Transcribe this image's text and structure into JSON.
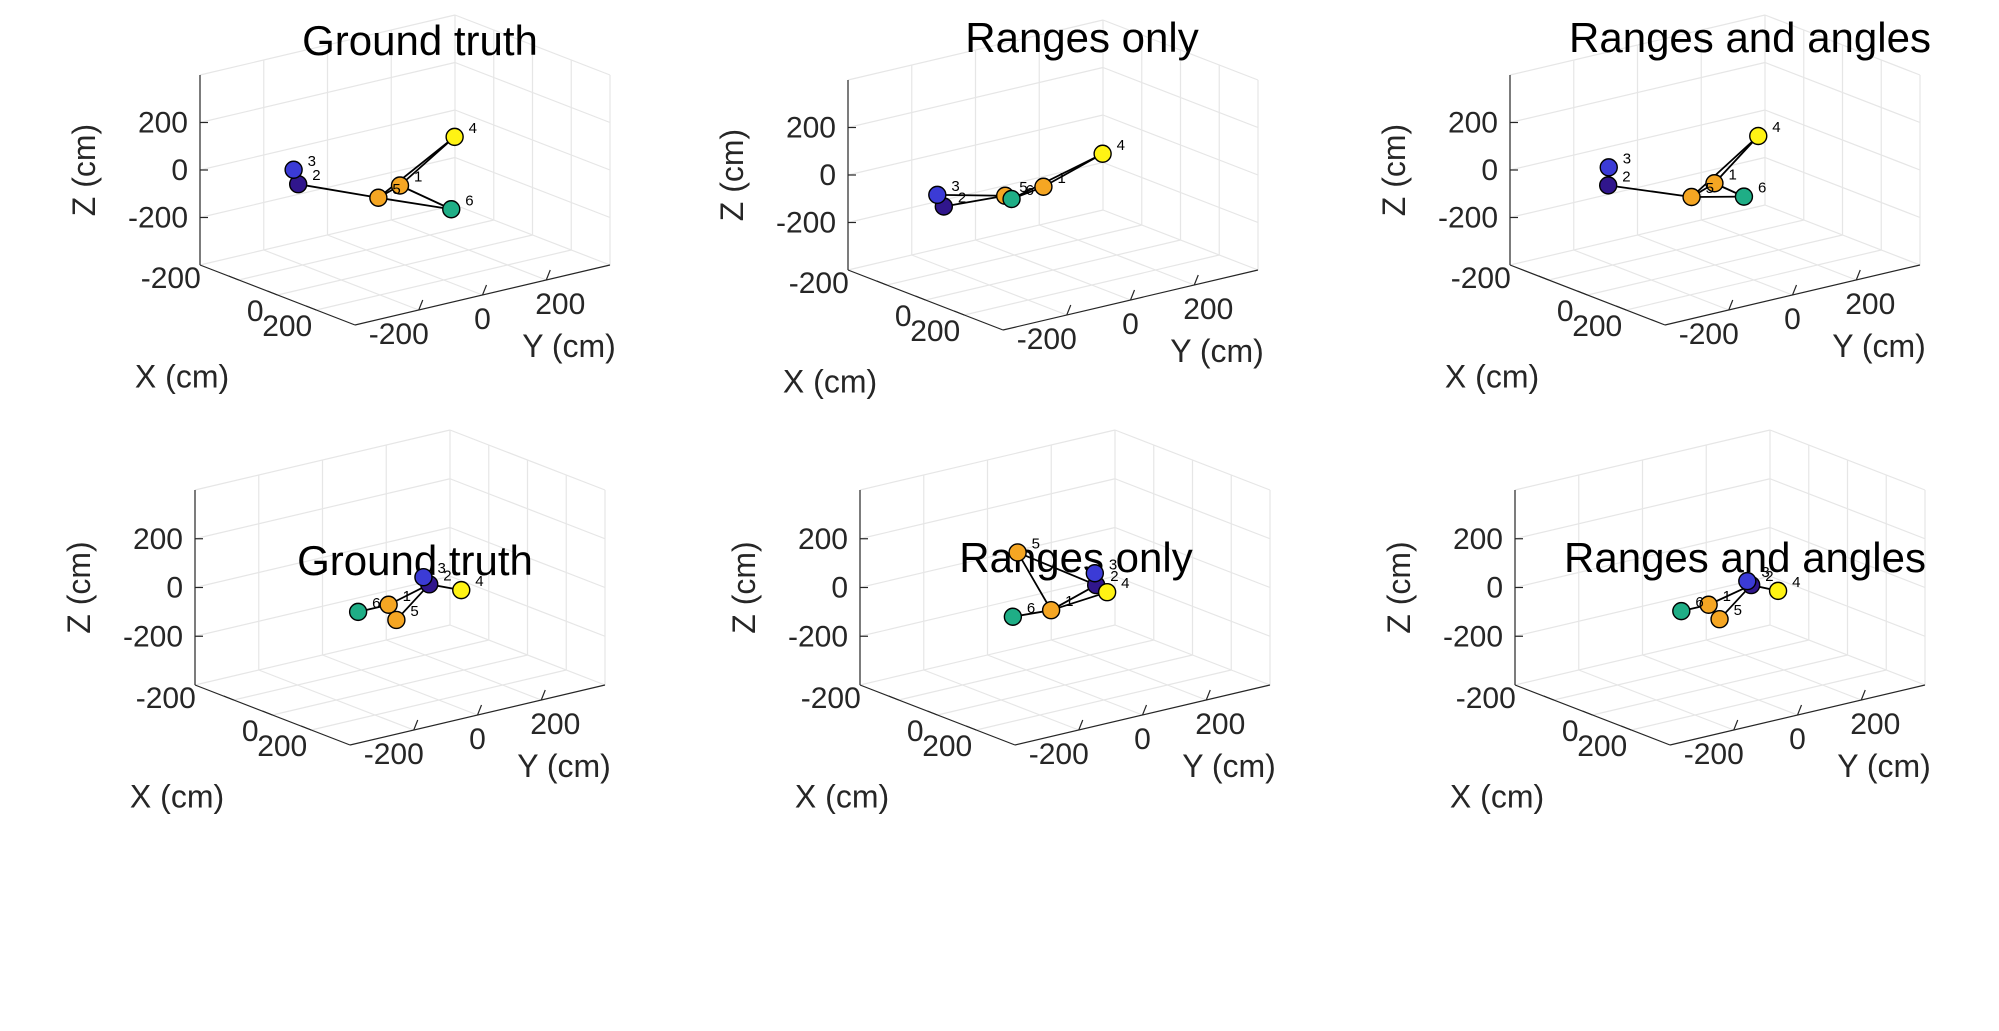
{
  "chart_data": [
    {
      "type": "scatter3d",
      "title": "Ground truth",
      "xlabel": "X (cm)",
      "ylabel": "Y (cm)",
      "zlabel": "Z (cm)",
      "xticks": [
        "-200",
        "0",
        "200"
      ],
      "yticks": [
        "-200",
        "0",
        "200"
      ],
      "zticks": [
        "200",
        "0",
        "-200"
      ],
      "grid": true,
      "nodes": [
        {
          "id": "1",
          "x": 40,
          "y": -40,
          "z": -40,
          "color": "#f5a623"
        },
        {
          "id": "2",
          "x": -140,
          "y": -250,
          "z": -25,
          "color": "#30168c"
        },
        {
          "id": "3",
          "x": -180,
          "y": -240,
          "z": 20,
          "color": "#3b3bd6"
        },
        {
          "id": "4",
          "x": -40,
          "y": 180,
          "z": 70,
          "color": "#fff314"
        },
        {
          "id": "5",
          "x": 60,
          "y": -120,
          "z": -60,
          "color": "#f5a623"
        },
        {
          "id": "6",
          "x": 140,
          "y": 60,
          "z": -140,
          "color": "#1fae86"
        }
      ],
      "edges": [
        [
          "3",
          "2"
        ],
        [
          "2",
          "5"
        ],
        [
          "5",
          "1"
        ],
        [
          "1",
          "4"
        ],
        [
          "5",
          "4"
        ],
        [
          "1",
          "6"
        ],
        [
          "5",
          "6"
        ]
      ]
    },
    {
      "type": "scatter3d",
      "title": "Ranges only",
      "xlabel": "X (cm)",
      "ylabel": "Y (cm)",
      "zlabel": "Z (cm)",
      "xticks": [
        "-200",
        "0",
        "200"
      ],
      "yticks": [
        "-200",
        "0",
        "200"
      ],
      "zticks": [
        "200",
        "0",
        "-200"
      ],
      "grid": true,
      "nodes": [
        {
          "id": "1",
          "x": 0,
          "y": -30,
          "z": -40,
          "color": "#f5a623"
        },
        {
          "id": "2",
          "x": -70,
          "y": -300,
          "z": -60,
          "color": "#30168c"
        },
        {
          "id": "3",
          "x": -120,
          "y": -290,
          "z": -30,
          "color": "#3b3bd6"
        },
        {
          "id": "4",
          "x": -40,
          "y": 180,
          "z": 20,
          "color": "#fff314"
        },
        {
          "id": "5",
          "x": 0,
          "y": -150,
          "z": -40,
          "color": "#f5a623"
        },
        {
          "id": "6",
          "x": 0,
          "y": -130,
          "z": -60,
          "color": "#1fae86"
        }
      ],
      "edges": [
        [
          "3",
          "2"
        ],
        [
          "2",
          "5"
        ],
        [
          "5",
          "6"
        ],
        [
          "6",
          "1"
        ],
        [
          "1",
          "4"
        ],
        [
          "3",
          "5"
        ],
        [
          "6",
          "4"
        ]
      ]
    },
    {
      "type": "scatter3d",
      "title": "Ranges and angles",
      "xlabel": "X (cm)",
      "ylabel": "Y (cm)",
      "zlabel": "Z (cm)",
      "xticks": [
        "-200",
        "0",
        "200"
      ],
      "yticks": [
        "-200",
        "0",
        "200"
      ],
      "zticks": [
        "200",
        "0",
        "-200"
      ],
      "grid": true,
      "nodes": [
        {
          "id": "1",
          "x": 30,
          "y": -20,
          "z": -40,
          "color": "#f5a623"
        },
        {
          "id": "2",
          "x": -140,
          "y": -250,
          "z": -30,
          "color": "#30168c"
        },
        {
          "id": "3",
          "x": -170,
          "y": -230,
          "z": 30,
          "color": "#3b3bd6"
        },
        {
          "id": "4",
          "x": -40,
          "y": 160,
          "z": 80,
          "color": "#fff314"
        },
        {
          "id": "5",
          "x": 60,
          "y": -110,
          "z": -60,
          "color": "#f5a623"
        },
        {
          "id": "6",
          "x": 100,
          "y": 30,
          "z": -90,
          "color": "#1fae86"
        }
      ],
      "edges": [
        [
          "3",
          "2"
        ],
        [
          "2",
          "5"
        ],
        [
          "5",
          "1"
        ],
        [
          "1",
          "4"
        ],
        [
          "5",
          "4"
        ],
        [
          "1",
          "6"
        ],
        [
          "5",
          "6"
        ]
      ]
    },
    {
      "type": "scatter3d",
      "title": "Ground truth",
      "xlabel": "X (cm)",
      "ylabel": "Y (cm)",
      "zlabel": "Z (cm)",
      "xticks": [
        "-200",
        "0",
        "200"
      ],
      "yticks": [
        "-200",
        "0",
        "200"
      ],
      "zticks": [
        "200",
        "0",
        "-200"
      ],
      "grid": true,
      "nodes": [
        {
          "id": "1",
          "x": 40,
          "y": -60,
          "z": -40,
          "color": "#f5a623"
        },
        {
          "id": "2",
          "x": -30,
          "y": 110,
          "z": -30,
          "color": "#30168c"
        },
        {
          "id": "3",
          "x": -60,
          "y": 110,
          "z": -10,
          "color": "#3b3bd6"
        },
        {
          "id": "4",
          "x": 20,
          "y": 180,
          "z": -60,
          "color": "#fff314"
        },
        {
          "id": "5",
          "x": 80,
          "y": -60,
          "z": -90,
          "color": "#f5a623"
        },
        {
          "id": "6",
          "x": 80,
          "y": -180,
          "z": -20,
          "color": "#1fae86"
        }
      ],
      "edges": [
        [
          "6",
          "1"
        ],
        [
          "1",
          "2"
        ],
        [
          "1",
          "5"
        ],
        [
          "5",
          "2"
        ],
        [
          "2",
          "3"
        ],
        [
          "2",
          "4"
        ]
      ]
    },
    {
      "type": "scatter3d",
      "title": "Ranges only",
      "xlabel": "X (cm)",
      "ylabel": "Y (cm)",
      "zlabel": "Z (cm)",
      "xticks": [
        "-200",
        "0",
        "200"
      ],
      "yticks": [
        "-200",
        "0",
        "200"
      ],
      "zticks": [
        "200",
        "0",
        "-200"
      ],
      "grid": true,
      "nodes": [
        {
          "id": "1",
          "x": 60,
          "y": -80,
          "z": -50,
          "color": "#f5a623"
        },
        {
          "id": "2",
          "x": -20,
          "y": 110,
          "z": -30,
          "color": "#30168c"
        },
        {
          "id": "3",
          "x": -60,
          "y": 130,
          "z": 0,
          "color": "#3b3bd6"
        },
        {
          "id": "4",
          "x": 20,
          "y": 120,
          "z": -50,
          "color": "#fff314"
        },
        {
          "id": "5",
          "x": -80,
          "y": -100,
          "z": 150,
          "color": "#f5a623"
        },
        {
          "id": "6",
          "x": 60,
          "y": -200,
          "z": -40,
          "color": "#1fae86"
        }
      ],
      "edges": [
        [
          "5",
          "1"
        ],
        [
          "5",
          "2"
        ],
        [
          "6",
          "1"
        ],
        [
          "1",
          "4"
        ],
        [
          "1",
          "2"
        ],
        [
          "2",
          "3"
        ]
      ]
    },
    {
      "type": "scatter3d",
      "title": "Ranges and angles",
      "xlabel": "X (cm)",
      "ylabel": "Y (cm)",
      "zlabel": "Z (cm)",
      "xticks": [
        "-200",
        "0",
        "200"
      ],
      "yticks": [
        "-200",
        "0",
        "200"
      ],
      "zticks": [
        "200",
        "0",
        "-200"
      ],
      "grid": true,
      "nodes": [
        {
          "id": "1",
          "x": 40,
          "y": -60,
          "z": -40,
          "color": "#f5a623"
        },
        {
          "id": "2",
          "x": -20,
          "y": 110,
          "z": -30,
          "color": "#30168c"
        },
        {
          "id": "3",
          "x": -40,
          "y": 110,
          "z": -20,
          "color": "#3b3bd6"
        },
        {
          "id": "4",
          "x": 20,
          "y": 170,
          "z": -60,
          "color": "#fff314"
        },
        {
          "id": "5",
          "x": 80,
          "y": -50,
          "z": -90,
          "color": "#f5a623"
        },
        {
          "id": "6",
          "x": 80,
          "y": -170,
          "z": -20,
          "color": "#1fae86"
        }
      ],
      "edges": [
        [
          "6",
          "1"
        ],
        [
          "1",
          "2"
        ],
        [
          "1",
          "5"
        ],
        [
          "5",
          "2"
        ],
        [
          "2",
          "3"
        ],
        [
          "2",
          "4"
        ]
      ]
    }
  ]
}
